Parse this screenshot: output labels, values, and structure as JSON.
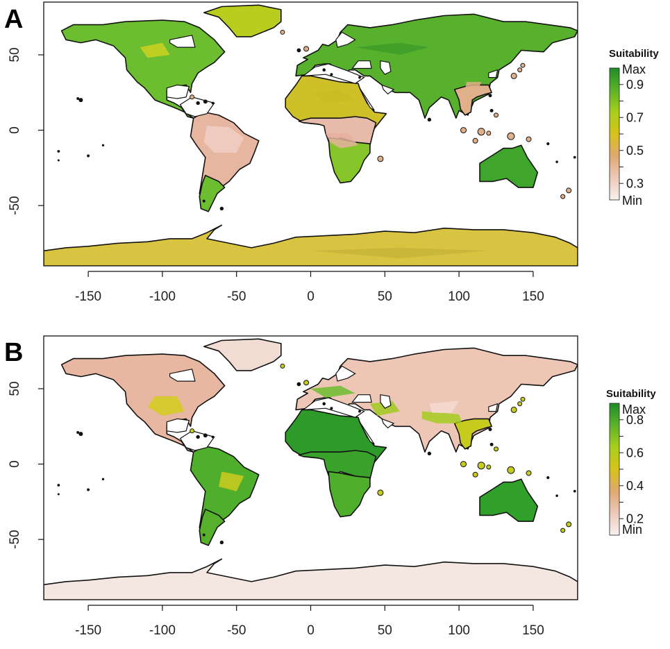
{
  "panels": [
    {
      "letter": "A",
      "legend": {
        "title": "Suitability",
        "top_label": "Max",
        "bottom_label": "Min",
        "ticks": [
          "0.9",
          "0.7",
          "0.5",
          "0.3"
        ],
        "colors": [
          "#f7f2ef",
          "#eec9b9",
          "#e0a870",
          "#d8c21c",
          "#a9cf1d",
          "#5cb328",
          "#1d8d27"
        ]
      },
      "land_colors": {
        "north_america": "#6cbd2f",
        "greenland": "#b9cd1e",
        "south_america": "#e7b6a0",
        "patagonia": "#6cbd2f",
        "europe_asia": "#58b12c",
        "africa_north": "#cfc02a",
        "africa_central": "#e7bba9",
        "south_africa": "#86c52a",
        "australia": "#3fa52d",
        "antarctica": "#d8c441",
        "southeast_asia": "#dfb08a"
      }
    },
    {
      "letter": "B",
      "legend": {
        "title": "Suitability",
        "top_label": "Max",
        "bottom_label": "Min",
        "ticks": [
          "0.8",
          "0.6",
          "0.4",
          "0.2"
        ],
        "colors": [
          "#f7f2ef",
          "#eec9b9",
          "#e0a870",
          "#d8c21c",
          "#a9cf1d",
          "#5cb328",
          "#1d8d27"
        ]
      },
      "land_colors": {
        "north_america": "#e8b7a2",
        "greenland": "#f1dcd4",
        "south_america": "#4fae2c",
        "patagonia": "#57b02c",
        "europe_asia": "#edc6b6",
        "africa_north": "#2e9a2a",
        "africa_central": "#3aa12b",
        "south_africa": "#4fae2c",
        "australia": "#31a02a",
        "antarctica": "#f4e6e1",
        "southeast_asia": "#c6cb1e"
      }
    }
  ],
  "map": {
    "x_ticks": [
      "-150",
      "-100",
      "-50",
      "0",
      "50",
      "100",
      "150"
    ],
    "y_ticks": [
      "50",
      "0",
      "-50"
    ],
    "x_tick_values": [
      -150,
      -100,
      -50,
      0,
      50,
      100,
      150
    ],
    "y_tick_values": [
      50,
      0,
      -50
    ]
  }
}
